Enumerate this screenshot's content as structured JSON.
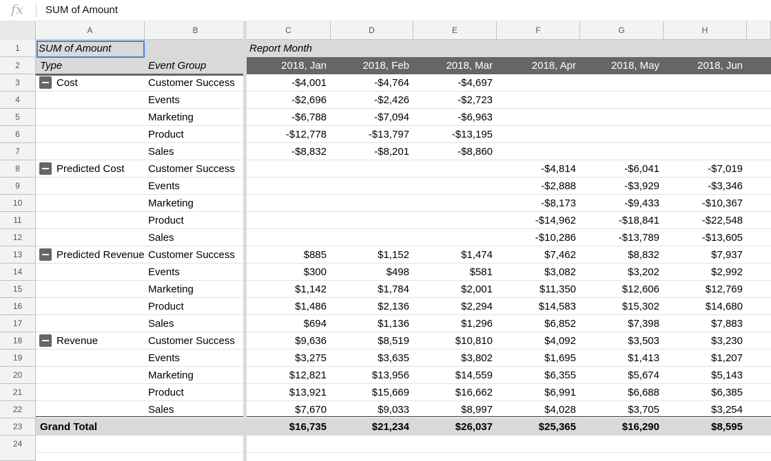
{
  "formula_bar": {
    "fx_label": "fx",
    "content": "SUM of Amount"
  },
  "columns": [
    "A",
    "B",
    "C",
    "D",
    "E",
    "F",
    "G",
    "H"
  ],
  "row_numbers": [
    "1",
    "2",
    "3",
    "4",
    "5",
    "6",
    "7",
    "8",
    "9",
    "10",
    "11",
    "12",
    "13",
    "14",
    "15",
    "16",
    "17",
    "18",
    "19",
    "20",
    "21",
    "22",
    "23",
    "24"
  ],
  "pivot": {
    "value_label": "SUM of Amount",
    "col_field_label": "Report Month",
    "type_header": "Type",
    "group_header": "Event Group",
    "months": [
      "2018, Jan",
      "2018, Feb",
      "2018, Mar",
      "2018, Apr",
      "2018, May",
      "2018, Jun"
    ],
    "types": [
      {
        "name": "Cost",
        "rows": [
          {
            "group": "Customer Success",
            "values": [
              "-$4,001",
              "-$4,764",
              "-$4,697",
              "",
              "",
              ""
            ]
          },
          {
            "group": "Events",
            "values": [
              "-$2,696",
              "-$2,426",
              "-$2,723",
              "",
              "",
              ""
            ]
          },
          {
            "group": "Marketing",
            "values": [
              "-$6,788",
              "-$7,094",
              "-$6,963",
              "",
              "",
              ""
            ]
          },
          {
            "group": "Product",
            "values": [
              "-$12,778",
              "-$13,797",
              "-$13,195",
              "",
              "",
              ""
            ]
          },
          {
            "group": "Sales",
            "values": [
              "-$8,832",
              "-$8,201",
              "-$8,860",
              "",
              "",
              ""
            ]
          }
        ]
      },
      {
        "name": "Predicted Cost",
        "rows": [
          {
            "group": "Customer Success",
            "values": [
              "",
              "",
              "",
              "-$4,814",
              "-$6,041",
              "-$7,019"
            ]
          },
          {
            "group": "Events",
            "values": [
              "",
              "",
              "",
              "-$2,888",
              "-$3,929",
              "-$3,346"
            ]
          },
          {
            "group": "Marketing",
            "values": [
              "",
              "",
              "",
              "-$8,173",
              "-$9,433",
              "-$10,367"
            ]
          },
          {
            "group": "Product",
            "values": [
              "",
              "",
              "",
              "-$14,962",
              "-$18,841",
              "-$22,548"
            ]
          },
          {
            "group": "Sales",
            "values": [
              "",
              "",
              "",
              "-$10,286",
              "-$13,789",
              "-$13,605"
            ]
          }
        ]
      },
      {
        "name": "Predicted Revenue",
        "rows": [
          {
            "group": "Customer Success",
            "values": [
              "$885",
              "$1,152",
              "$1,474",
              "$7,462",
              "$8,832",
              "$7,937"
            ]
          },
          {
            "group": "Events",
            "values": [
              "$300",
              "$498",
              "$581",
              "$3,082",
              "$3,202",
              "$2,992"
            ]
          },
          {
            "group": "Marketing",
            "values": [
              "$1,142",
              "$1,784",
              "$2,001",
              "$11,350",
              "$12,606",
              "$12,769"
            ]
          },
          {
            "group": "Product",
            "values": [
              "$1,486",
              "$2,136",
              "$2,294",
              "$14,583",
              "$15,302",
              "$14,680"
            ]
          },
          {
            "group": "Sales",
            "values": [
              "$694",
              "$1,136",
              "$1,296",
              "$6,852",
              "$7,398",
              "$7,883"
            ]
          }
        ]
      },
      {
        "name": "Revenue",
        "rows": [
          {
            "group": "Customer Success",
            "values": [
              "$9,636",
              "$8,519",
              "$10,810",
              "$4,092",
              "$3,503",
              "$3,230"
            ]
          },
          {
            "group": "Events",
            "values": [
              "$3,275",
              "$3,635",
              "$3,802",
              "$1,695",
              "$1,413",
              "$1,207"
            ]
          },
          {
            "group": "Marketing",
            "values": [
              "$12,821",
              "$13,956",
              "$14,559",
              "$6,355",
              "$5,674",
              "$5,143"
            ]
          },
          {
            "group": "Product",
            "values": [
              "$13,921",
              "$15,669",
              "$16,662",
              "$6,991",
              "$6,688",
              "$6,385"
            ]
          },
          {
            "group": "Sales",
            "values": [
              "$7,670",
              "$9,033",
              "$8,997",
              "$4,028",
              "$3,705",
              "$3,254"
            ]
          }
        ]
      }
    ],
    "grand_total": {
      "label": "Grand Total",
      "values": [
        "$16,735",
        "$21,234",
        "$26,037",
        "$25,365",
        "$16,290",
        "$8,595"
      ]
    }
  },
  "colors": {
    "month_header_bg": "#666666",
    "row_header_bg": "#d9d9d9",
    "selection": "#4a7edc"
  }
}
